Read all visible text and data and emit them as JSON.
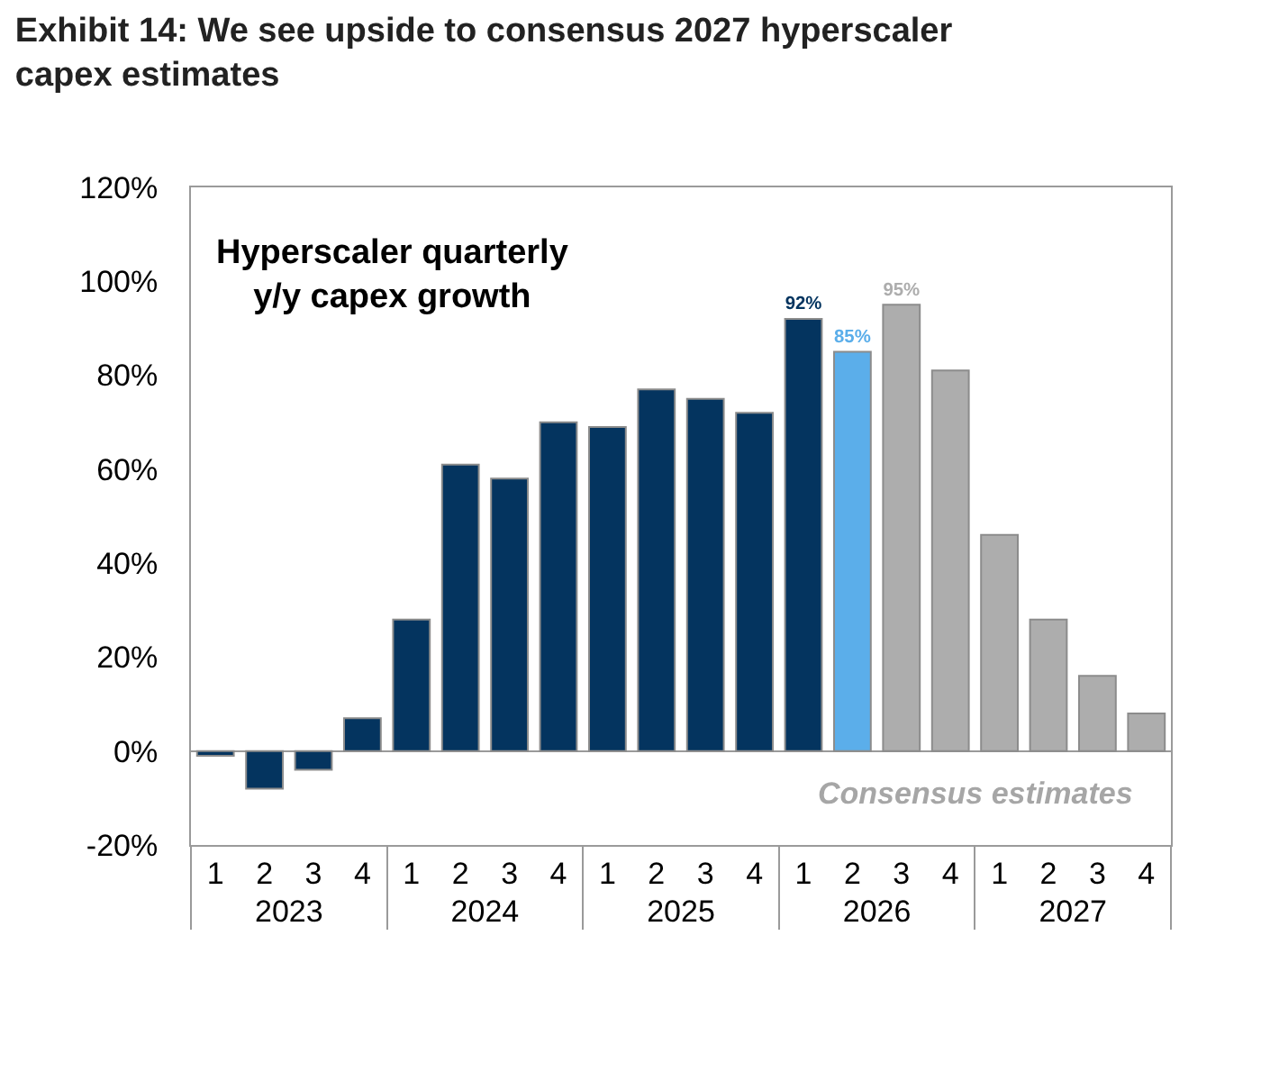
{
  "chart_data": {
    "type": "bar",
    "title": "Exhibit 14: We see upside to consensus 2027 hyperscaler capex estimates",
    "subtitle": "Hyperscaler quarterly\ny/y capex growth",
    "categories": [
      "1",
      "2",
      "3",
      "4",
      "1",
      "2",
      "3",
      "4",
      "1",
      "2",
      "3",
      "4",
      "1",
      "2",
      "3",
      "4",
      "1",
      "2",
      "3",
      "4"
    ],
    "values": [
      -1,
      -8,
      -4,
      7,
      28,
      61,
      58,
      70,
      69,
      77,
      75,
      72,
      92,
      85,
      95,
      81,
      46,
      28,
      16,
      8
    ],
    "colors": [
      "#04345f",
      "#04345f",
      "#04345f",
      "#04345f",
      "#04345f",
      "#04345f",
      "#04345f",
      "#04345f",
      "#04345f",
      "#04345f",
      "#04345f",
      "#04345f",
      "#04345f",
      "#5baeea",
      "#adadad",
      "#adadad",
      "#adadad",
      "#adadad",
      "#adadad",
      "#adadad"
    ],
    "value_labels": [
      null,
      null,
      null,
      null,
      null,
      null,
      null,
      null,
      null,
      null,
      null,
      null,
      "92%",
      "85%",
      "95%",
      null,
      null,
      null,
      null,
      null
    ],
    "ylim": [
      -20,
      120
    ],
    "yticks": [
      {
        "value": -20,
        "label": "-20%"
      },
      {
        "value": 0,
        "label": "0%"
      },
      {
        "value": 20,
        "label": "20%"
      },
      {
        "value": 40,
        "label": "40%"
      },
      {
        "value": 60,
        "label": "60%"
      },
      {
        "value": 80,
        "label": "80%"
      },
      {
        "value": 100,
        "label": "100%"
      },
      {
        "value": 120,
        "label": "120%"
      }
    ],
    "annotations": [
      "Consensus estimates",
      "2023",
      "2024",
      "2025",
      "2026",
      "2027"
    ]
  }
}
